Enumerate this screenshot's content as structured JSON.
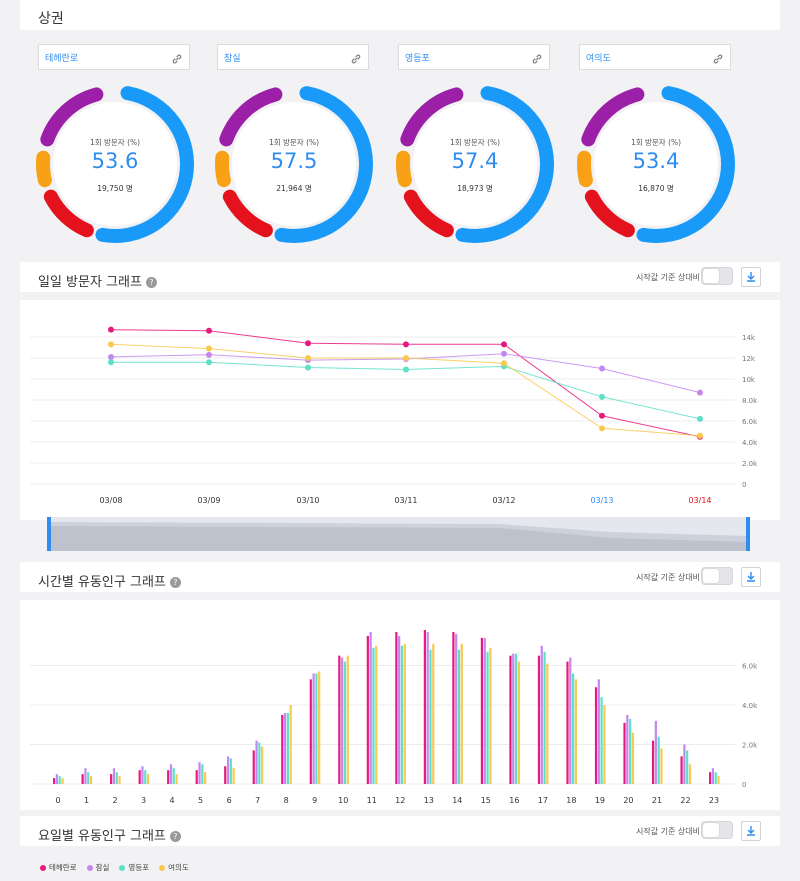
{
  "header": {
    "title": "상권"
  },
  "areas": [
    {
      "name": "테헤란로",
      "percent_label": "1회 방문자 (%)",
      "value": "53.6",
      "count": "19,750 명"
    },
    {
      "name": "잠실",
      "percent_label": "1회 방문자 (%)",
      "value": "57.5",
      "count": "21,964 명"
    },
    {
      "name": "영등포",
      "percent_label": "1회 방문자 (%)",
      "value": "57.4",
      "count": "18,973 명"
    },
    {
      "name": "여의도",
      "percent_label": "1회 방문자 (%)",
      "value": "53.4",
      "count": "16,870 명"
    }
  ],
  "controls": {
    "toggle_label": "시작값 기준 상대비"
  },
  "legend": [
    {
      "name": "테헤란로",
      "color": "#e8197d"
    },
    {
      "name": "잠실",
      "color": "#c387ef"
    },
    {
      "name": "영등포",
      "color": "#5ee0c8"
    },
    {
      "name": "여의도",
      "color": "#f8c94f"
    }
  ],
  "donut_colors": {
    "blue": "#1a9af8",
    "purple": "#9c1fa8",
    "orange": "#f8a116",
    "red": "#e4121c"
  },
  "daily": {
    "title": "일일 방문자 그래프"
  },
  "hourly": {
    "title": "시간별 유동인구 그래프"
  },
  "weekly": {
    "title": "요일별 유동인구 그래프"
  },
  "chart_data": [
    {
      "type": "line",
      "x": [
        "03/08",
        "03/09",
        "03/10",
        "03/11",
        "03/12",
        "03/13",
        "03/14"
      ],
      "x_label_colors": [
        "#333",
        "#333",
        "#333",
        "#333",
        "#333",
        "#2f8cf0",
        "#e4121c"
      ],
      "y_ticks": [
        "0",
        "2.0k",
        "4.0k",
        "6.0k",
        "8.0k",
        "10k",
        "12k",
        "14k"
      ],
      "ylim": [
        0,
        14000
      ],
      "series": [
        {
          "name": "테헤란로",
          "values": [
            14700,
            14600,
            13400,
            13300,
            13300,
            6500,
            4500
          ]
        },
        {
          "name": "잠실",
          "values": [
            12100,
            12300,
            11800,
            11900,
            12400,
            11000,
            8700
          ]
        },
        {
          "name": "영등포",
          "values": [
            11600,
            11600,
            11100,
            10900,
            11200,
            8300,
            6200
          ]
        },
        {
          "name": "여의도",
          "values": [
            13300,
            12900,
            12000,
            12000,
            11500,
            5300,
            4600
          ]
        }
      ]
    },
    {
      "type": "bar",
      "categories": [
        "0",
        "1",
        "2",
        "3",
        "4",
        "5",
        "6",
        "7",
        "8",
        "9",
        "10",
        "11",
        "12",
        "13",
        "14",
        "15",
        "16",
        "17",
        "18",
        "19",
        "20",
        "21",
        "22",
        "23"
      ],
      "y_ticks": [
        "0",
        "2.0k",
        "4.0k",
        "6.0k"
      ],
      "ylim": [
        0,
        7800
      ],
      "series": [
        {
          "name": "테헤란로",
          "values": [
            300,
            500,
            500,
            700,
            700,
            700,
            900,
            1700,
            3500,
            5300,
            6500,
            7500,
            7700,
            7800,
            7700,
            7400,
            6500,
            6500,
            6200,
            4900,
            3100,
            2200,
            1400,
            600
          ]
        },
        {
          "name": "잠실",
          "values": [
            500,
            800,
            800,
            900,
            1000,
            1100,
            1400,
            2200,
            3600,
            5600,
            6400,
            7700,
            7500,
            7700,
            7600,
            7400,
            6600,
            7000,
            6400,
            5300,
            3500,
            3200,
            2000,
            800
          ]
        },
        {
          "name": "영등포",
          "values": [
            400,
            600,
            600,
            700,
            800,
            1000,
            1300,
            2100,
            3600,
            5600,
            6200,
            6900,
            7000,
            6800,
            6800,
            6700,
            6600,
            6700,
            5600,
            4400,
            3300,
            2400,
            1700,
            600
          ]
        },
        {
          "name": "여의도",
          "values": [
            300,
            400,
            400,
            500,
            500,
            600,
            800,
            1900,
            4000,
            5700,
            6500,
            7000,
            7100,
            7100,
            7100,
            6900,
            6200,
            6100,
            5300,
            4000,
            2600,
            1800,
            1000,
            400
          ]
        }
      ]
    }
  ]
}
